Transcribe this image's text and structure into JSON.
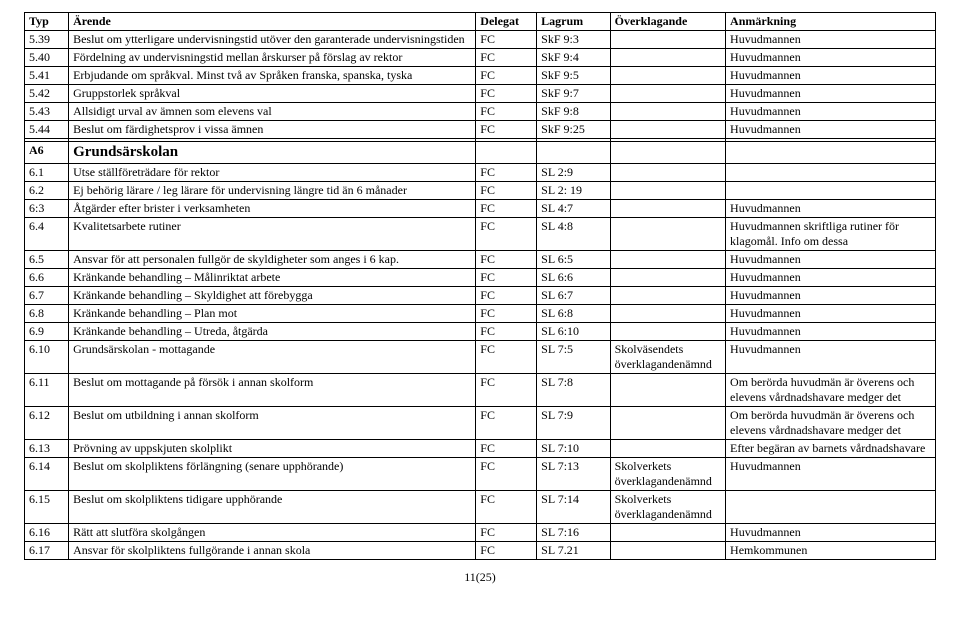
{
  "columns": [
    "Typ",
    "Ärende",
    "Delegat",
    "Lagrum",
    "Överklagande",
    "Anmärkning"
  ],
  "rows_top": [
    {
      "typ": "5.39",
      "arende": "Beslut om ytterligare undervisningstid utöver den garanterade undervisningstiden",
      "delegat": "FC",
      "lagrum": "SkF 9:3",
      "overkl": "",
      "anm": "Huvudmannen"
    },
    {
      "typ": "5.40",
      "arende": "Fördelning av undervisningstid mellan årskurser på förslag av rektor",
      "delegat": "FC",
      "lagrum": "SkF 9:4",
      "overkl": "",
      "anm": "Huvudmannen"
    },
    {
      "typ": "5.41",
      "arende": "Erbjudande om språkval. Minst två av Språken franska, spanska, tyska",
      "delegat": "FC",
      "lagrum": "SkF 9:5",
      "overkl": "",
      "anm": "Huvudmannen"
    },
    {
      "typ": "5.42",
      "arende": "Gruppstorlek språkval",
      "delegat": "FC",
      "lagrum": "SkF 9:7",
      "overkl": "",
      "anm": "Huvudmannen"
    },
    {
      "typ": "5.43",
      "arende": "Allsidigt urval av ämnen som elevens val",
      "delegat": "FC",
      "lagrum": "SkF 9:8",
      "overkl": "",
      "anm": "Huvudmannen"
    },
    {
      "typ": "5.44",
      "arende": "Beslut om färdighetsprov i vissa ämnen",
      "delegat": "FC",
      "lagrum": "SkF 9:25",
      "overkl": "",
      "anm": "Huvudmannen"
    }
  ],
  "section": {
    "typ": "A6",
    "title": "Grundsärskolan"
  },
  "rows_a6": [
    {
      "typ": "6.1",
      "arende": "Utse ställföreträdare för rektor",
      "delegat": "FC",
      "lagrum": "SL 2:9",
      "overkl": "",
      "anm": ""
    },
    {
      "typ": "6.2",
      "arende": "Ej behörig lärare / leg lärare för undervisning längre tid än 6 månader",
      "delegat": "FC",
      "lagrum": "SL 2: 19",
      "overkl": "",
      "anm": ""
    },
    {
      "typ": "6:3",
      "arende": "Åtgärder efter brister i verksamheten",
      "delegat": "FC",
      "lagrum": "SL 4:7",
      "overkl": "",
      "anm": "Huvudmannen"
    },
    {
      "typ": "6.4",
      "arende": "Kvalitetsarbete rutiner",
      "delegat": "FC",
      "lagrum": "SL 4:8",
      "overkl": "",
      "anm": "Huvudmannen skriftliga rutiner för klagomål. Info om dessa"
    },
    {
      "typ": "6.5",
      "arende": "Ansvar för att personalen fullgör de skyldigheter som anges i 6 kap.",
      "delegat": "FC",
      "lagrum": "SL 6:5",
      "overkl": "",
      "anm": "Huvudmannen"
    },
    {
      "typ": "6.6",
      "arende": "Kränkande behandling – Målinriktat arbete",
      "delegat": "FC",
      "lagrum": "SL 6:6",
      "overkl": "",
      "anm": "Huvudmannen"
    },
    {
      "typ": "6.7",
      "arende": "Kränkande behandling – Skyldighet att förebygga",
      "delegat": "FC",
      "lagrum": "SL 6:7",
      "overkl": "",
      "anm": "Huvudmannen"
    },
    {
      "typ": "6.8",
      "arende": "Kränkande behandling – Plan mot",
      "delegat": "FC",
      "lagrum": "SL 6:8",
      "overkl": "",
      "anm": "Huvudmannen"
    },
    {
      "typ": "6.9",
      "arende": "Kränkande behandling – Utreda, åtgärda",
      "delegat": "FC",
      "lagrum": "SL 6:10",
      "overkl": "",
      "anm": "Huvudmannen"
    },
    {
      "typ": "6.10",
      "arende": "Grundsärskolan - mottagande",
      "delegat": "FC",
      "lagrum": "SL 7:5",
      "overkl": "Skolväsendets överklagandenämnd",
      "anm": "Huvudmannen"
    },
    {
      "typ": "6.11",
      "arende": "Beslut om mottagande på försök i annan skolform",
      "delegat": "FC",
      "lagrum": "SL 7:8",
      "overkl": "",
      "anm": "Om berörda huvudmän är överens och elevens vårdnadshavare medger det"
    },
    {
      "typ": "6.12",
      "arende": "Beslut om utbildning i annan skolform",
      "delegat": "FC",
      "lagrum": "SL 7:9",
      "overkl": "",
      "anm": "Om berörda huvudmän är överens och elevens vårdnadshavare medger det"
    },
    {
      "typ": "6.13",
      "arende": "Prövning av uppskjuten skolplikt",
      "delegat": "FC",
      "lagrum": "SL 7:10",
      "overkl": "",
      "anm": "Efter begäran av barnets vårdnadshavare"
    },
    {
      "typ": "6.14",
      "arende": "Beslut om skolpliktens förlängning (senare upphörande)",
      "delegat": "FC",
      "lagrum": "SL 7:13",
      "overkl": "Skolverkets överklagandenämnd",
      "anm": "Huvudmannen"
    },
    {
      "typ": "6.15",
      "arende": "Beslut om skolpliktens tidigare upphörande",
      "delegat": "FC",
      "lagrum": "SL 7:14",
      "overkl": "Skolverkets överklagandenämnd",
      "anm": ""
    },
    {
      "typ": "6.16",
      "arende": "Rätt att slutföra skolgången",
      "delegat": "FC",
      "lagrum": "SL 7:16",
      "overkl": "",
      "anm": "Huvudmannen"
    },
    {
      "typ": "6.17",
      "arende": "Ansvar för skolpliktens fullgörande i annan skola",
      "delegat": "FC",
      "lagrum": "SL 7.21",
      "overkl": "",
      "anm": "Hemkommunen"
    }
  ],
  "footer": "11(25)",
  "style": {
    "font_family": "Times New Roman",
    "font_size_pt": 12,
    "header_bold": true,
    "border_color": "#000000",
    "background": "#ffffff"
  }
}
